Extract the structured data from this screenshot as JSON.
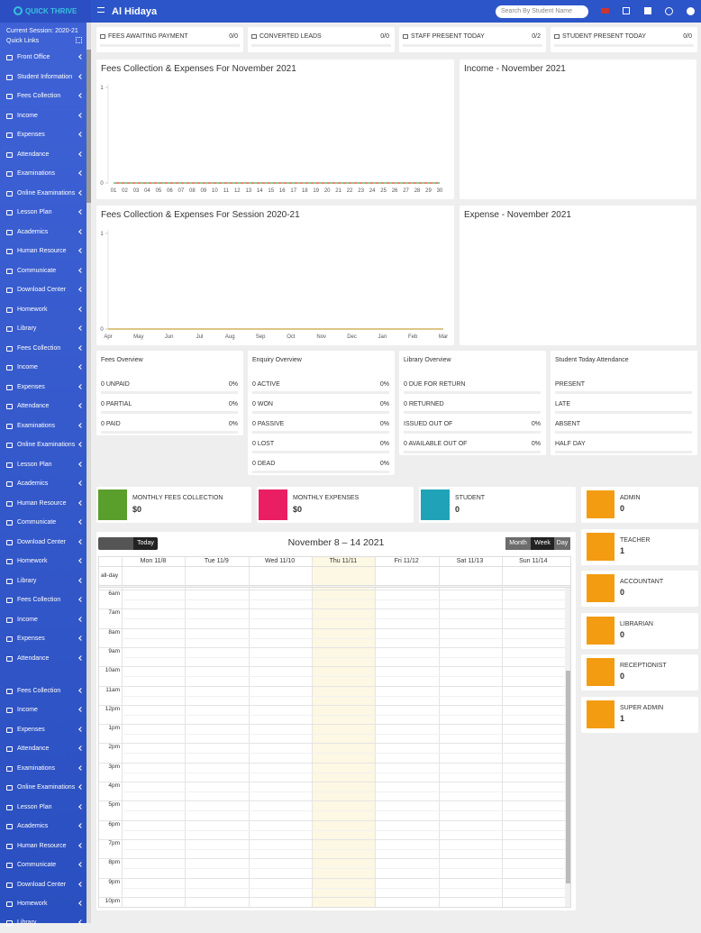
{
  "header": {
    "logo": "QUICK THRIVE",
    "school": "Al Hidaya",
    "search_placeholder": "Search By Student Name"
  },
  "sidebar": {
    "session": "Current Session: 2020-21",
    "quick_links": "Quick Links",
    "menu": [
      "Front Office",
      "Student Information",
      "Fees Collection",
      "Income",
      "Expenses",
      "Attendance",
      "Examinations",
      "Online Examinations",
      "Lesson Plan",
      "Academics",
      "Human Resource",
      "Communicate",
      "Download Center",
      "Homework",
      "Library",
      "Fees Collection",
      "Income",
      "Expenses",
      "Attendance",
      "Examinations",
      "Online Examinations",
      "Lesson Plan",
      "Academics",
      "Human Resource",
      "Communicate",
      "Download Center",
      "Homework",
      "Library",
      "Fees Collection",
      "Income",
      "Expenses",
      "Attendance",
      "Fees Collection",
      "Income",
      "Expenses",
      "Attendance",
      "Examinations",
      "Online Examinations",
      "Lesson Plan",
      "Academics",
      "Human Resource",
      "Communicate",
      "Download Center",
      "Homework",
      "Library"
    ]
  },
  "stats": [
    {
      "label": "FEES AWAITING PAYMENT",
      "value": "0/0"
    },
    {
      "label": "CONVERTED LEADS",
      "value": "0/0"
    },
    {
      "label": "STAFF PRESENT TODAY",
      "value": "0/2"
    },
    {
      "label": "STUDENT PRESENT TODAY",
      "value": "0/0"
    }
  ],
  "chart_data": [
    {
      "type": "line",
      "title": "Fees Collection & Expenses For November 2021",
      "categories": [
        "01",
        "02",
        "03",
        "04",
        "05",
        "06",
        "07",
        "08",
        "09",
        "10",
        "11",
        "12",
        "13",
        "14",
        "15",
        "16",
        "17",
        "18",
        "19",
        "20",
        "21",
        "22",
        "23",
        "24",
        "25",
        "26",
        "27",
        "28",
        "29",
        "30"
      ],
      "series": [
        {
          "color": "#4caf50",
          "values": [
            0,
            0,
            0,
            0,
            0,
            0,
            0,
            0,
            0,
            0,
            0,
            0,
            0,
            0,
            0,
            0,
            0,
            0,
            0,
            0,
            0,
            0,
            0,
            0,
            0,
            0,
            0,
            0,
            0,
            0
          ]
        },
        {
          "color": "#e53935",
          "values": [
            0,
            0,
            0,
            0,
            0,
            0,
            0,
            0,
            0,
            0,
            0,
            0,
            0,
            0,
            0,
            0,
            0,
            0,
            0,
            0,
            0,
            0,
            0,
            0,
            0,
            0,
            0,
            0,
            0,
            0
          ]
        }
      ],
      "ylim": [
        0,
        1
      ],
      "yticks": [
        0,
        1
      ]
    },
    {
      "type": "line",
      "title": "Fees Collection & Expenses For Session 2020-21",
      "categories": [
        "Apr",
        "May",
        "Jun",
        "Jul",
        "Aug",
        "Sep",
        "Oct",
        "Nov",
        "Dec",
        "Jan",
        "Feb",
        "Mar"
      ],
      "series": [
        {
          "color": "#c9a03c",
          "values": [
            0,
            0,
            0,
            0,
            0,
            0,
            0,
            0,
            0,
            0,
            0,
            0
          ]
        }
      ],
      "ylim": [
        0,
        1
      ],
      "yticks": [
        0,
        1
      ]
    }
  ],
  "panels": {
    "income_title": "Income - November 2021",
    "expense_title": "Expense - November 2021"
  },
  "overviews": [
    {
      "title": "Fees Overview",
      "rows": [
        {
          "label": "0 UNPAID",
          "percent": "0%"
        },
        {
          "label": "0 PARTIAL",
          "percent": "0%"
        },
        {
          "label": "0 PAID",
          "percent": "0%"
        }
      ]
    },
    {
      "title": "Enquiry Overview",
      "rows": [
        {
          "label": "0 ACTIVE",
          "percent": "0%"
        },
        {
          "label": "0 WON",
          "percent": "0%"
        },
        {
          "label": "0 PASSIVE",
          "percent": "0%"
        },
        {
          "label": "0 LOST",
          "percent": "0%"
        },
        {
          "label": "0 DEAD",
          "percent": "0%"
        }
      ]
    },
    {
      "title": "Library Overview",
      "rows": [
        {
          "label": "0 DUE FOR RETURN"
        },
        {
          "label": "0 RETURNED"
        },
        {
          "label": "ISSUED OUT OF",
          "percent": "0%"
        },
        {
          "label": "0 AVAILABLE OUT OF",
          "percent": "0%"
        }
      ]
    },
    {
      "title": "Student Today Attendance",
      "rows": [
        {
          "label": "PRESENT"
        },
        {
          "label": "LATE"
        },
        {
          "label": "ABSENT"
        },
        {
          "label": "HALF DAY"
        }
      ]
    }
  ],
  "info_boxes": [
    {
      "label": "MONTHLY FEES COLLECTION",
      "value": "$0",
      "color": "#5a9e2c"
    },
    {
      "label": "MONTHLY EXPENSES",
      "value": "$0",
      "color": "#e91e63"
    },
    {
      "label": "STUDENT",
      "value": "0",
      "color": "#20a3b8"
    }
  ],
  "staff": [
    {
      "role": "ADMIN",
      "count": 0
    },
    {
      "role": "TEACHER",
      "count": 1
    },
    {
      "role": "ACCOUNTANT",
      "count": 0
    },
    {
      "role": "LIBRARIAN",
      "count": 0
    },
    {
      "role": "RECEPTIONIST",
      "count": 0
    },
    {
      "role": "SUPER ADMIN",
      "count": 1
    }
  ],
  "calendar": {
    "today": "Today",
    "title": "November 8 – 14 2021",
    "views": [
      "Month",
      "Week",
      "Day"
    ],
    "days": [
      "Mon 11/8",
      "Tue 11/9",
      "Wed 11/10",
      "Thu 11/11",
      "Fri 11/12",
      "Sat 11/13",
      "Sun 11/14"
    ],
    "all_day": "all-day",
    "times": [
      "6am",
      "7am",
      "8am",
      "9am",
      "10am",
      "11am",
      "12pm",
      "1pm",
      "2pm",
      "3pm",
      "4pm",
      "5pm",
      "6pm",
      "7pm",
      "8pm",
      "9pm",
      "10pm"
    ]
  }
}
